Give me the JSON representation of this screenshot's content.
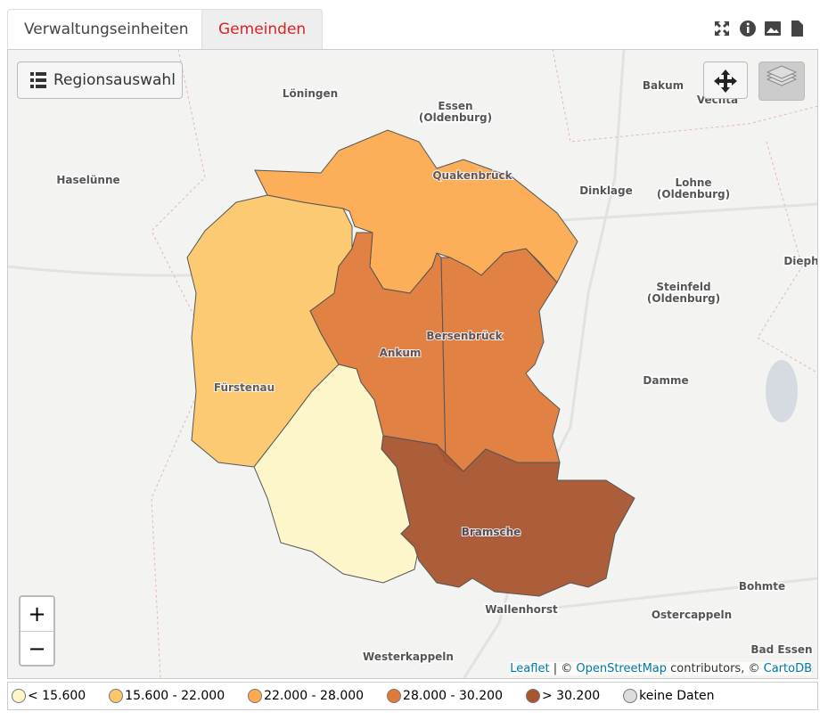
{
  "tabs": [
    "Verwaltungseinheiten",
    "Gemeinden"
  ],
  "map": {
    "region_button": "Regionsauswahl",
    "zoom_in": "+",
    "zoom_out": "−",
    "places": [
      {
        "lines": [
          "Löningen"
        ]
      },
      {
        "lines": [
          "Essen",
          "(Oldenburg)"
        ]
      },
      {
        "lines": [
          "Bakum"
        ]
      },
      {
        "lines": [
          "Vechta"
        ]
      },
      {
        "lines": [
          "Haselünne"
        ]
      },
      {
        "lines": [
          "Dinklage"
        ]
      },
      {
        "lines": [
          "Lohne",
          "(Oldenburg)"
        ]
      },
      {
        "lines": [
          "Dieph"
        ]
      },
      {
        "lines": [
          "Steinfeld",
          "(Oldenburg)"
        ]
      },
      {
        "lines": [
          "Damme"
        ]
      },
      {
        "lines": [
          "Bohmte"
        ]
      },
      {
        "lines": [
          "Wallenhorst"
        ]
      },
      {
        "lines": [
          "Ostercappeln"
        ]
      },
      {
        "lines": [
          "Westerkappeln"
        ]
      },
      {
        "lines": [
          "Bad Essen"
        ]
      }
    ],
    "regions": [
      {
        "name": "Quakenbrück",
        "class": 2
      },
      {
        "name": "Fürstenau",
        "class": 1
      },
      {
        "name": "Ankum",
        "class": 3
      },
      {
        "name": "Bersenbrück",
        "class": 3
      },
      {
        "class": 0
      },
      {
        "name": "Bramsche",
        "class": 4
      }
    ],
    "attribution": [
      "Leaflet",
      "| ©",
      "OpenStreetMap",
      "contributors, ©",
      "CartoDB"
    ]
  },
  "legend": [
    {
      "label": "< 15.600",
      "color": "#fef5c8"
    },
    {
      "label": "15.600 - 22.000",
      "color": "#fbc76b"
    },
    {
      "label": "22.000 - 28.000",
      "color": "#fdaa50"
    },
    {
      "label": "28.000 - 30.200",
      "color": "#df7a3a"
    },
    {
      "label": "> 30.200",
      "color": "#a85530"
    },
    {
      "label": "keine Daten",
      "color": "#dddddd"
    }
  ]
}
